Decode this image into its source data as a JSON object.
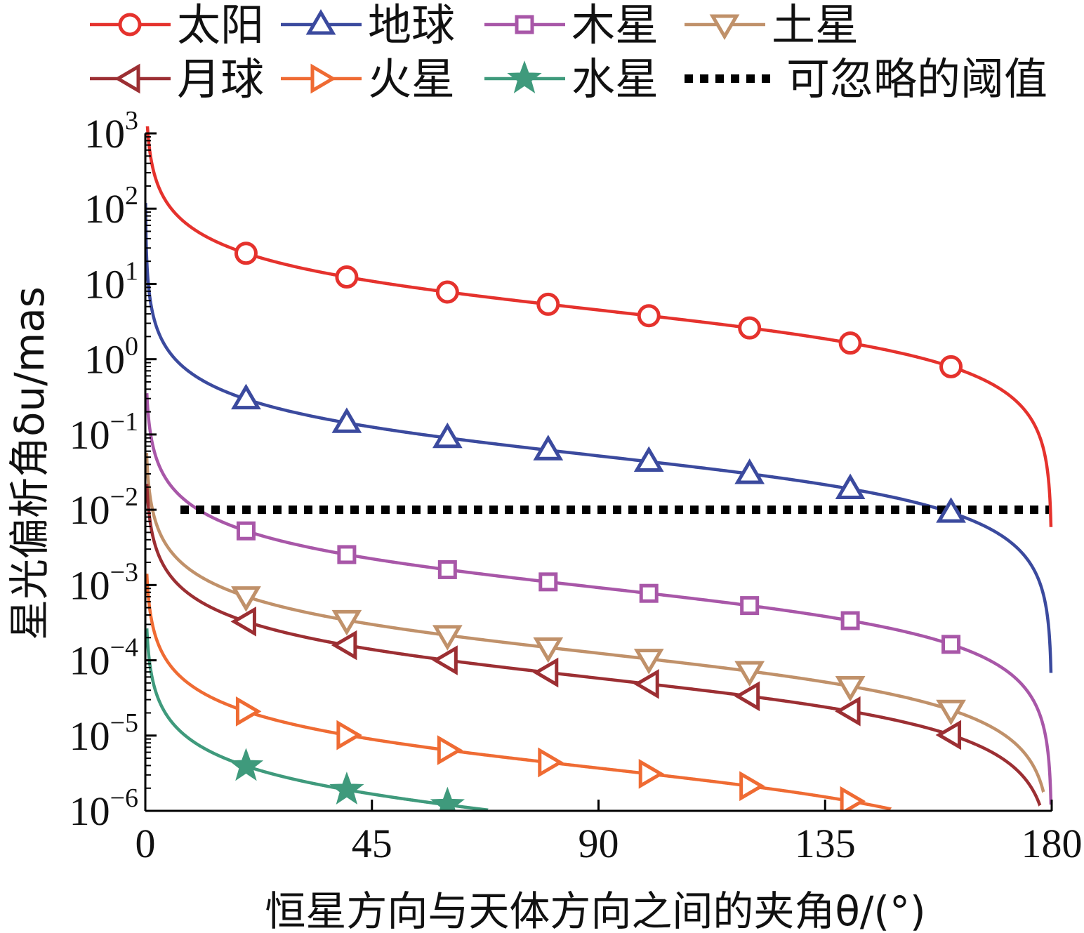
{
  "chart_data": {
    "type": "line",
    "xlabel": "恒星方向与天体方向之间的夹角θ/(°)",
    "ylabel": "星光偏析角δu/mas",
    "x_scale": "linear",
    "y_scale": "log",
    "xlim": [
      0,
      180
    ],
    "ylim": [
      1e-06,
      1000
    ],
    "x_ticks": [
      0,
      45,
      90,
      135,
      180
    ],
    "y_ticks": [
      1e-06,
      1e-05,
      0.0001,
      0.001,
      0.01,
      0.1,
      1,
      10,
      100,
      1000
    ],
    "y_tick_exponents": [
      "−6",
      "−5",
      "−4",
      "−3",
      "−2",
      "−1",
      "0",
      "1",
      "2",
      "3"
    ],
    "y_tick_base": "10",
    "legend_placement": "top, above plot, two rows",
    "grid": false,
    "series": [
      {
        "name": "太阳",
        "color": "#e5322d",
        "marker": "circle",
        "marker_x": [
          20,
          40,
          60,
          80,
          100,
          120,
          140,
          160
        ],
        "A": 7.8,
        "B": 0.0,
        "endpoint": 180,
        "start": 0.3
      },
      {
        "name": "地球",
        "color": "#3b4a9e",
        "marker": "triangle-up",
        "marker_x": [
          20,
          40,
          60,
          80,
          100,
          120,
          140,
          160
        ],
        "A": 0.09,
        "B": 0.0,
        "endpoint": 180,
        "start": 0.05
      },
      {
        "name": "木星",
        "color": "#a857a8",
        "marker": "square",
        "marker_x": [
          20,
          40,
          60,
          80,
          100,
          120,
          140,
          160
        ],
        "A": 0.0016,
        "B": 0.0,
        "endpoint": 180,
        "start": 0.3
      },
      {
        "name": "土星",
        "color": "#c0916a",
        "marker": "triangle-down",
        "marker_x": [
          20,
          40,
          60,
          80,
          100,
          120,
          140,
          160
        ],
        "A": 0.000215,
        "B": 0.0,
        "endpoint": 178.5,
        "start": 0.25
      },
      {
        "name": "月球",
        "color": "#9c2f33",
        "marker": "triangle-left",
        "marker_x": [
          20,
          40,
          60,
          80,
          100,
          120,
          140,
          160
        ],
        "A": 0.0001,
        "B": 0.0,
        "endpoint": 177.8,
        "start": 0.3
      },
      {
        "name": "火星",
        "color": "#ef6b33",
        "marker": "triangle-right",
        "marker_x": [
          20,
          40,
          60,
          80,
          100,
          120,
          140
        ],
        "A": 6.4e-06,
        "B": 0.0,
        "endpoint": 180,
        "start": 0.3,
        "xmax": 148
      },
      {
        "name": "水星",
        "color": "#3f9a7c",
        "marker": "star",
        "marker_x": [
          20,
          40,
          60
        ],
        "A": 1.2e-06,
        "B": 0.0,
        "endpoint": 180,
        "start": 0.3,
        "xmax": 68
      },
      {
        "name": "可忽略的阈值",
        "color": "#000000",
        "marker": "none",
        "dashed": true,
        "constant": 0.01,
        "x_range": [
          0,
          180
        ]
      }
    ]
  }
}
